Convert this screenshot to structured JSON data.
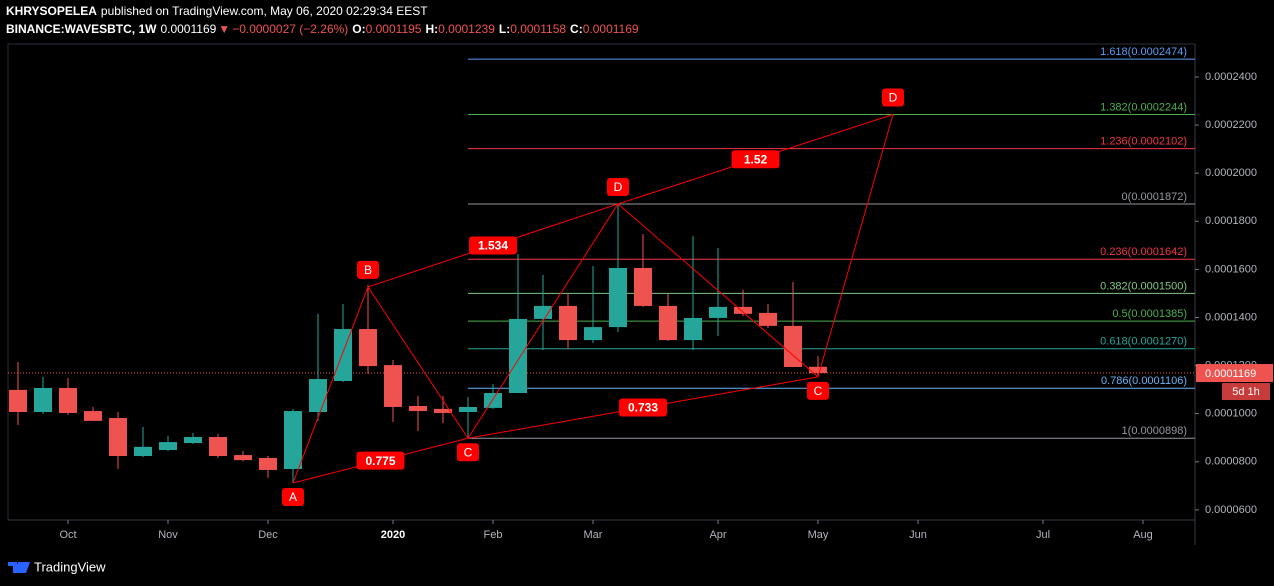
{
  "header": {
    "author": "KHRYSOPELEA",
    "published": "published on TradingView.com, May 06, 2020 02:29:34 EEST",
    "symbol": "BINANCE:WAVESBTC, 1W",
    "last": "0.0001169",
    "arrow": "▼",
    "change": "−0.0000027 (−2.26%)",
    "ohlc": [
      {
        "label": "O:",
        "value": "0.0001195"
      },
      {
        "label": "H:",
        "value": "0.0001239"
      },
      {
        "label": "L:",
        "value": "0.0001158"
      },
      {
        "label": "C:",
        "value": "0.0001169"
      }
    ]
  },
  "footer": {
    "brand": "TradingView"
  },
  "chart_data": {
    "type": "candlestick",
    "categories": [
      null,
      null,
      "Oct",
      null,
      null,
      null,
      "Nov",
      null,
      null,
      null,
      "Dec",
      null,
      null,
      null,
      null,
      "2020",
      null,
      null,
      null,
      "Feb",
      null,
      null,
      null,
      "Mar",
      null,
      null,
      null,
      null,
      "Apr",
      null,
      null,
      null,
      "May",
      null,
      null,
      null,
      "Jun",
      null,
      null,
      null,
      null,
      "Jul",
      null,
      null,
      null,
      "Aug",
      null,
      null
    ],
    "up_color": "#26a69a",
    "down_color": "#ef5350",
    "series": [
      {
        "open": [
          0.0001099,
          0.0001007,
          0.0001107,
          0.0001011,
          9.82e-05,
          8.24e-05,
          8.49e-05,
          8.78e-05,
          9.03e-05,
          8.28e-05,
          8.16e-05,
          7.7e-05,
          0.0001007,
          0.0001136,
          0.0001352,
          0.0001202,
          0.0001032,
          0.000102,
          0.0001007,
          0.0001024,
          0.0001086,
          0.0001394,
          0.0001448,
          0.0001306,
          0.000136,
          0.0001606,
          0.0001448,
          0.0001306,
          0.0001398,
          0.0001444,
          0.0001419,
          0.0001365,
          0.0001195,
          null,
          null,
          null,
          null,
          null,
          null,
          null,
          null,
          null,
          null,
          null,
          null,
          null,
          null,
          null
        ],
        "high": [
          0.0001215,
          0.0001153,
          0.0001149,
          0.0001028,
          0.0001007,
          9.45e-05,
          9.07e-05,
          9.2e-05,
          9.16e-05,
          8.45e-05,
          8.24e-05,
          0.000102,
          0.0001415,
          0.0001456,
          0.0001535,
          0.0001223,
          0.0001074,
          0.0001074,
          0.0001069,
          0.0001123,
          0.0001664,
          0.0001577,
          0.0001498,
          0.0001614,
          0.0001872,
          0.0001747,
          0.0001498,
          0.0001739,
          0.0001689,
          0.0001514,
          0.0001456,
          0.0001548,
          0.0001239,
          null,
          null,
          null,
          null,
          null,
          null,
          null,
          null,
          null,
          null,
          null,
          null,
          null,
          null,
          null
        ],
        "low": [
          9.53e-05,
          9.99e-05,
          9.95e-05,
          9.7e-05,
          7.7e-05,
          8.2e-05,
          8.45e-05,
          8.74e-05,
          8.16e-05,
          8.03e-05,
          7.33e-05,
          7.12e-05,
          9.7e-05,
          0.0001132,
          0.0001165,
          9.66e-05,
          9.28e-05,
          9.61e-05,
          8.98e-05,
          0.000102,
          0.0001086,
          0.0001265,
          0.0001269,
          0.0001294,
          0.000134,
          0.0001444,
          0.0001302,
          0.0001265,
          0.0001323,
          0.0001406,
          0.0001356,
          0.0001194,
          0.0001158,
          null,
          null,
          null,
          null,
          null,
          null,
          null,
          null,
          null,
          null,
          null,
          null,
          null,
          null,
          null
        ],
        "close": [
          0.0001007,
          0.0001107,
          0.0001003,
          9.7e-05,
          8.24e-05,
          8.62e-05,
          8.82e-05,
          9.03e-05,
          8.24e-05,
          8.07e-05,
          7.66e-05,
          0.0001011,
          0.0001144,
          0.0001352,
          0.0001198,
          0.0001028,
          0.0001011,
          0.0001003,
          0.0001028,
          0.0001086,
          0.0001394,
          0.0001448,
          0.0001306,
          0.000136,
          0.0001606,
          0.0001448,
          0.0001306,
          0.0001398,
          0.0001444,
          0.0001415,
          0.0001365,
          0.0001194,
          0.0001169,
          null,
          null,
          null,
          null,
          null,
          null,
          null,
          null,
          null,
          null,
          null,
          null,
          null,
          null,
          null
        ]
      }
    ],
    "ylim": [
      5.58e-05,
      0.0002537
    ],
    "yticks": [
      {
        "value": 6e-05,
        "label": "0.0000600"
      },
      {
        "value": 8e-05,
        "label": "0.0000800"
      },
      {
        "value": 0.0001,
        "label": "0.0001000"
      },
      {
        "value": 0.00012,
        "label": "0.0001200"
      },
      {
        "value": 0.00014,
        "label": "0.0001400"
      },
      {
        "value": 0.00016,
        "label": "0.0001600"
      },
      {
        "value": 0.00018,
        "label": "0.0001800"
      },
      {
        "value": 0.0002,
        "label": "0.0002000"
      },
      {
        "value": 0.00022,
        "label": "0.0002200"
      },
      {
        "value": 0.00024,
        "label": "0.0002400"
      }
    ],
    "fib_levels": [
      {
        "label": "1.618(0.0002474)",
        "value": 0.0002474,
        "color": "#5b9cf6"
      },
      {
        "label": "1.382(0.0002244)",
        "value": 0.0002244,
        "color": "#4caf50"
      },
      {
        "label": "1.236(0.0002102)",
        "value": 0.0002102,
        "color": "#f23645"
      },
      {
        "label": "0(0.0001872)",
        "value": 0.0001872,
        "color": "#9598a1"
      },
      {
        "label": "0.236(0.0001642)",
        "value": 0.0001642,
        "color": "#f23645"
      },
      {
        "label": "0.382(0.0001500)",
        "value": 0.00015,
        "color": "#81c784"
      },
      {
        "label": "0.5(0.0001385)",
        "value": 0.0001385,
        "color": "#4caf50"
      },
      {
        "label": "0.618(0.0001270)",
        "value": 0.000127,
        "color": "#26a69a"
      },
      {
        "label": "0.786(0.0001106)",
        "value": 0.0001106,
        "color": "#64b5f6"
      },
      {
        "label": "1(0.0000898)",
        "value": 8.98e-05,
        "color": "#9598a1"
      }
    ],
    "pattern_points": [
      {
        "label": "A",
        "x": 11,
        "value": 7.12e-05
      },
      {
        "label": "B",
        "x": 14,
        "value": 0.0001527
      },
      {
        "label": "C",
        "x": 18,
        "value": 8.98e-05
      },
      {
        "label": "D",
        "x": 24,
        "value": 0.0001872
      },
      {
        "label": "C",
        "x": 32,
        "value": 0.0001153
      },
      {
        "label": "D",
        "x": 35,
        "value": 0.0002244
      }
    ],
    "ratio_labels": [
      1.534,
      0.775,
      1.52,
      0.733
    ],
    "last_price": 0.0001169,
    "countdown": "5d 1h"
  }
}
